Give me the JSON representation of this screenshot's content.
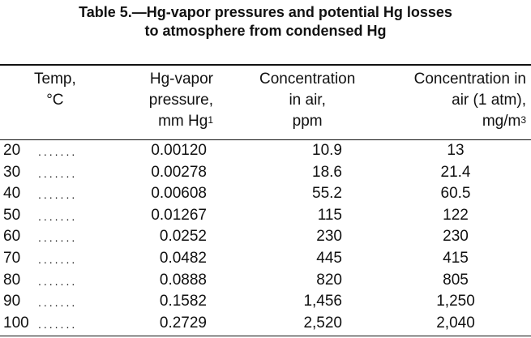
{
  "title": {
    "line1": "Table 5.—Hg-vapor pressures and potential Hg losses",
    "line2": "to atmosphere from condensed Hg"
  },
  "columns": [
    {
      "lines": [
        "Temp,",
        "°C"
      ]
    },
    {
      "lines": [
        "Hg-vapor",
        "pressure,",
        "mm Hg"
      ],
      "footnote": "1"
    },
    {
      "lines": [
        "Concentration",
        "in air,",
        "ppm"
      ]
    },
    {
      "lines": [
        "Concentration in",
        "air (1 atm),",
        "mg/m"
      ],
      "superscript": "3"
    }
  ],
  "leader": ".......",
  "rows": [
    {
      "temp": "20",
      "pressure": "0.00120",
      "ppm": "10.9",
      "mgm3": "13"
    },
    {
      "temp": "30",
      "pressure": "0.00278",
      "ppm": "18.6",
      "mgm3": "21.4"
    },
    {
      "temp": "40",
      "pressure": "0.00608",
      "ppm": "55.2",
      "mgm3": "60.5"
    },
    {
      "temp": "50",
      "pressure": "0.01267",
      "ppm": "115",
      "mgm3": "122"
    },
    {
      "temp": "60",
      "pressure": "0.0252",
      "ppm": "230",
      "mgm3": "230"
    },
    {
      "temp": "70",
      "pressure": "0.0482",
      "ppm": "445",
      "mgm3": "415"
    },
    {
      "temp": "80",
      "pressure": "0.0888",
      "ppm": "820",
      "mgm3": "805"
    },
    {
      "temp": "90",
      "pressure": "0.1582",
      "ppm": "1,456",
      "mgm3": "1,250"
    },
    {
      "temp": "100",
      "pressure": "0.2729",
      "ppm": "2,520",
      "mgm3": "2,040"
    }
  ]
}
